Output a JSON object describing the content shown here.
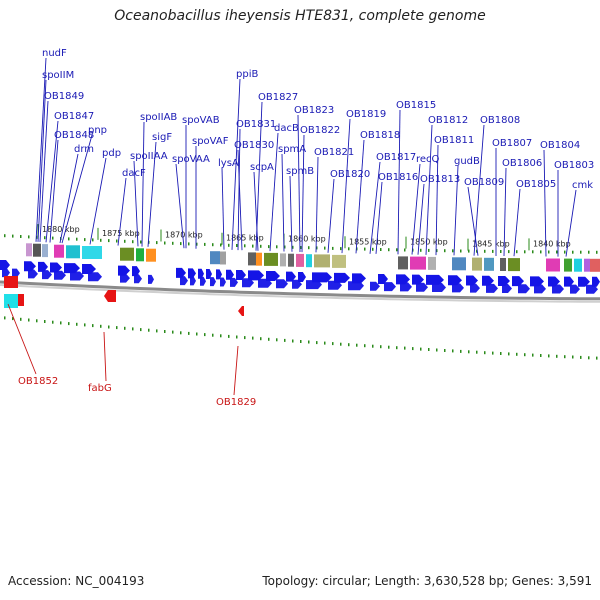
{
  "title": "Oceanobacillus iheyensis HTE831, complete genome",
  "footer": {
    "accession": "Accession: NC_004193",
    "summary": "Topology: circular; Length: 3,630,528 bp; Genes: 3,591"
  },
  "colors": {
    "forward_gene": "#1414e6",
    "reverse_gene": "#e61414",
    "backbone": "#8a8a8a",
    "tick": "#2a8a1a",
    "label_forward": "#1a1ab4",
    "label_reverse": "#c81414"
  },
  "scale_labels": [
    "1880 kbp",
    "1875 kbp",
    "1870 kbp",
    "1865 kbp",
    "1860 kbp",
    "1855 kbp",
    "1850 kbp",
    "1845 kbp",
    "1840 kbp"
  ],
  "forward_genes": [
    "nudF",
    "spoIIM",
    "OB1849",
    "OB1847",
    "OB1848",
    "pnp",
    "drm",
    "pdp",
    "dacF",
    "spoIIAB",
    "sigF",
    "spoIIAA",
    "spoVAB",
    "spoVAF",
    "spoVAA",
    "ppiB",
    "lysA",
    "OB1831",
    "OB1830",
    "OB1827",
    "scpA",
    "dacB",
    "spmA",
    "OB1823",
    "OB1822",
    "spmB",
    "OB1821",
    "OB1820",
    "OB1819",
    "OB1818",
    "OB1817",
    "OB1816",
    "OB1815",
    "recQ",
    "OB1813",
    "OB1812",
    "OB1811",
    "gudB",
    "OB1808",
    "OB1809",
    "OB1807",
    "OB1806",
    "OB1805",
    "OB1804",
    "OB1803",
    "cmk"
  ],
  "reverse_genes": [
    "OB1852",
    "fabG",
    "OB1829"
  ]
}
